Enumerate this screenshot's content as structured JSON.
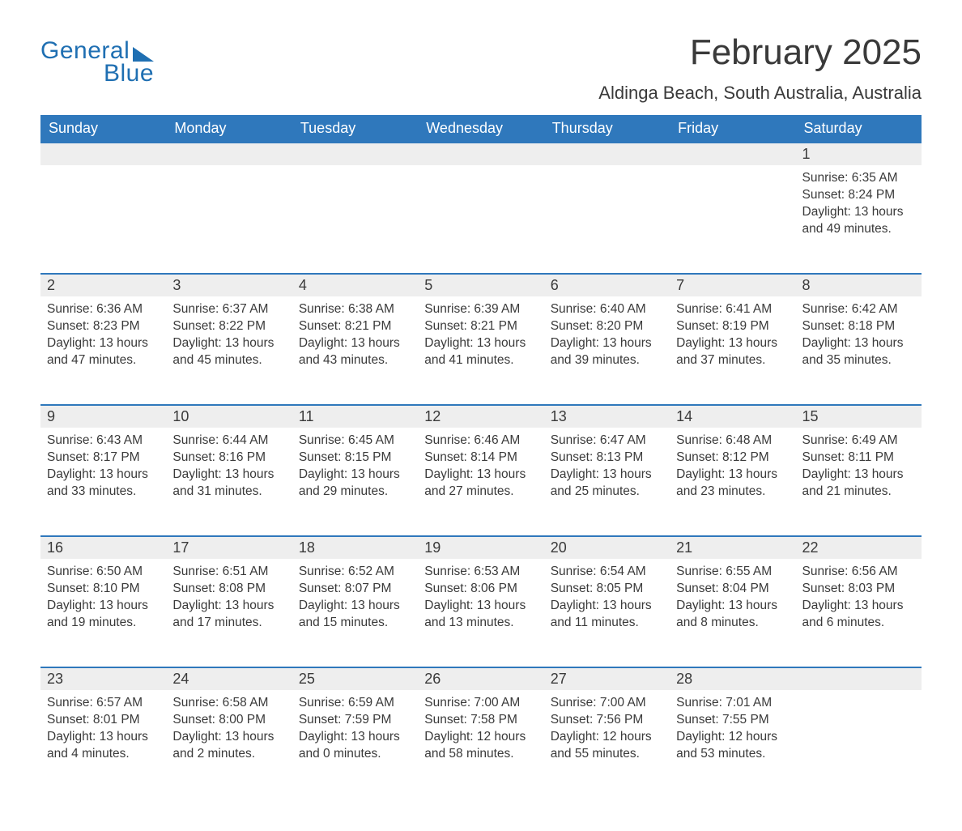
{
  "brand": {
    "part1": "General",
    "part2": "Blue"
  },
  "title": "February 2025",
  "location": "Aldinga Beach, South Australia, Australia",
  "colors": {
    "header_bg": "#2f78bc",
    "header_text": "#ffffff",
    "daynum_bg": "#eeeeee",
    "border_top": "#2f78bc",
    "text": "#3a3a3a",
    "brand": "#1f6fb2",
    "page_bg": "#ffffff"
  },
  "weekdays": [
    "Sunday",
    "Monday",
    "Tuesday",
    "Wednesday",
    "Thursday",
    "Friday",
    "Saturday"
  ],
  "labels": {
    "sunrise": "Sunrise:",
    "sunset": "Sunset:",
    "daylight": "Daylight:"
  },
  "weeks": [
    [
      null,
      null,
      null,
      null,
      null,
      null,
      {
        "day": "1",
        "sunrise": "6:35 AM",
        "sunset": "8:24 PM",
        "daylight": "13 hours and 49 minutes."
      }
    ],
    [
      {
        "day": "2",
        "sunrise": "6:36 AM",
        "sunset": "8:23 PM",
        "daylight": "13 hours and 47 minutes."
      },
      {
        "day": "3",
        "sunrise": "6:37 AM",
        "sunset": "8:22 PM",
        "daylight": "13 hours and 45 minutes."
      },
      {
        "day": "4",
        "sunrise": "6:38 AM",
        "sunset": "8:21 PM",
        "daylight": "13 hours and 43 minutes."
      },
      {
        "day": "5",
        "sunrise": "6:39 AM",
        "sunset": "8:21 PM",
        "daylight": "13 hours and 41 minutes."
      },
      {
        "day": "6",
        "sunrise": "6:40 AM",
        "sunset": "8:20 PM",
        "daylight": "13 hours and 39 minutes."
      },
      {
        "day": "7",
        "sunrise": "6:41 AM",
        "sunset": "8:19 PM",
        "daylight": "13 hours and 37 minutes."
      },
      {
        "day": "8",
        "sunrise": "6:42 AM",
        "sunset": "8:18 PM",
        "daylight": "13 hours and 35 minutes."
      }
    ],
    [
      {
        "day": "9",
        "sunrise": "6:43 AM",
        "sunset": "8:17 PM",
        "daylight": "13 hours and 33 minutes."
      },
      {
        "day": "10",
        "sunrise": "6:44 AM",
        "sunset": "8:16 PM",
        "daylight": "13 hours and 31 minutes."
      },
      {
        "day": "11",
        "sunrise": "6:45 AM",
        "sunset": "8:15 PM",
        "daylight": "13 hours and 29 minutes."
      },
      {
        "day": "12",
        "sunrise": "6:46 AM",
        "sunset": "8:14 PM",
        "daylight": "13 hours and 27 minutes."
      },
      {
        "day": "13",
        "sunrise": "6:47 AM",
        "sunset": "8:13 PM",
        "daylight": "13 hours and 25 minutes."
      },
      {
        "day": "14",
        "sunrise": "6:48 AM",
        "sunset": "8:12 PM",
        "daylight": "13 hours and 23 minutes."
      },
      {
        "day": "15",
        "sunrise": "6:49 AM",
        "sunset": "8:11 PM",
        "daylight": "13 hours and 21 minutes."
      }
    ],
    [
      {
        "day": "16",
        "sunrise": "6:50 AM",
        "sunset": "8:10 PM",
        "daylight": "13 hours and 19 minutes."
      },
      {
        "day": "17",
        "sunrise": "6:51 AM",
        "sunset": "8:08 PM",
        "daylight": "13 hours and 17 minutes."
      },
      {
        "day": "18",
        "sunrise": "6:52 AM",
        "sunset": "8:07 PM",
        "daylight": "13 hours and 15 minutes."
      },
      {
        "day": "19",
        "sunrise": "6:53 AM",
        "sunset": "8:06 PM",
        "daylight": "13 hours and 13 minutes."
      },
      {
        "day": "20",
        "sunrise": "6:54 AM",
        "sunset": "8:05 PM",
        "daylight": "13 hours and 11 minutes."
      },
      {
        "day": "21",
        "sunrise": "6:55 AM",
        "sunset": "8:04 PM",
        "daylight": "13 hours and 8 minutes."
      },
      {
        "day": "22",
        "sunrise": "6:56 AM",
        "sunset": "8:03 PM",
        "daylight": "13 hours and 6 minutes."
      }
    ],
    [
      {
        "day": "23",
        "sunrise": "6:57 AM",
        "sunset": "8:01 PM",
        "daylight": "13 hours and 4 minutes."
      },
      {
        "day": "24",
        "sunrise": "6:58 AM",
        "sunset": "8:00 PM",
        "daylight": "13 hours and 2 minutes."
      },
      {
        "day": "25",
        "sunrise": "6:59 AM",
        "sunset": "7:59 PM",
        "daylight": "13 hours and 0 minutes."
      },
      {
        "day": "26",
        "sunrise": "7:00 AM",
        "sunset": "7:58 PM",
        "daylight": "12 hours and 58 minutes."
      },
      {
        "day": "27",
        "sunrise": "7:00 AM",
        "sunset": "7:56 PM",
        "daylight": "12 hours and 55 minutes."
      },
      {
        "day": "28",
        "sunrise": "7:01 AM",
        "sunset": "7:55 PM",
        "daylight": "12 hours and 53 minutes."
      },
      null
    ]
  ]
}
